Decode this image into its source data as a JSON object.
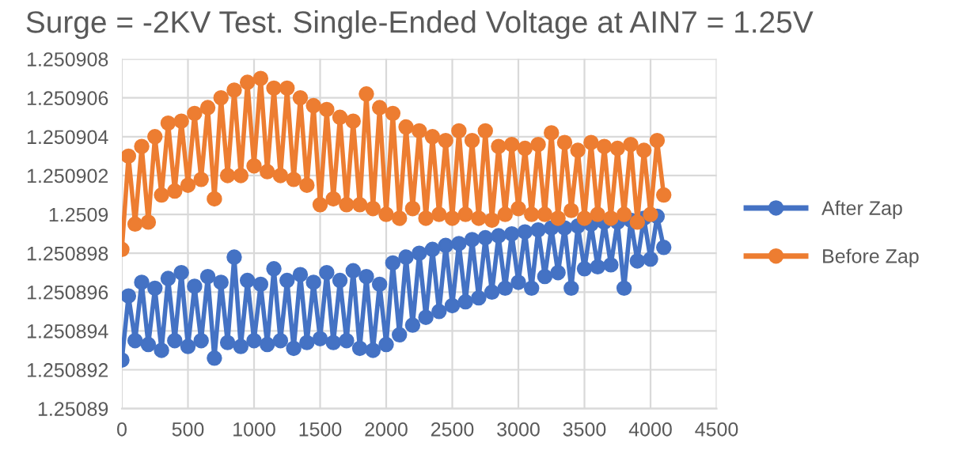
{
  "chart_data": {
    "type": "line",
    "title": "Surge = -2KV Test. Single-Ended Voltage at AIN7 = 1.25V",
    "x": [
      0,
      50,
      100,
      150,
      200,
      250,
      300,
      350,
      400,
      450,
      500,
      550,
      600,
      650,
      700,
      750,
      800,
      850,
      900,
      950,
      1000,
      1050,
      1100,
      1150,
      1200,
      1250,
      1300,
      1350,
      1400,
      1450,
      1500,
      1550,
      1600,
      1650,
      1700,
      1750,
      1800,
      1850,
      1900,
      1950,
      2000,
      2050,
      2100,
      2150,
      2200,
      2250,
      2300,
      2350,
      2400,
      2450,
      2500,
      2550,
      2600,
      2650,
      2700,
      2750,
      2800,
      2850,
      2900,
      2950,
      3000,
      3050,
      3100,
      3150,
      3200,
      3250,
      3300,
      3350,
      3400,
      3450,
      3500,
      3550,
      3600,
      3650,
      3700,
      3750,
      3800,
      3850,
      3900,
      3950,
      4000,
      4050,
      4100
    ],
    "series": [
      {
        "name": "After Zap",
        "color": "#4472c4",
        "values": [
          1.2508925,
          1.2508958,
          1.2508935,
          1.2508965,
          1.2508933,
          1.2508962,
          1.250893,
          1.2508967,
          1.2508935,
          1.250897,
          1.2508932,
          1.2508963,
          1.2508935,
          1.2508968,
          1.2508926,
          1.2508965,
          1.2508934,
          1.2508978,
          1.2508932,
          1.2508966,
          1.2508935,
          1.2508964,
          1.2508933,
          1.2508972,
          1.2508935,
          1.2508966,
          1.2508931,
          1.2508969,
          1.2508934,
          1.2508965,
          1.2508936,
          1.250897,
          1.2508934,
          1.2508966,
          1.2508935,
          1.2508971,
          1.2508931,
          1.2508968,
          1.250893,
          1.2508964,
          1.2508933,
          1.2508975,
          1.2508938,
          1.2508978,
          1.2508943,
          1.250898,
          1.2508947,
          1.2508982,
          1.250895,
          1.2508984,
          1.2508953,
          1.2508985,
          1.2508955,
          1.2508987,
          1.2508957,
          1.2508988,
          1.250896,
          1.2508989,
          1.2508962,
          1.250899,
          1.2508965,
          1.2508991,
          1.2508962,
          1.2508992,
          1.2508968,
          1.2508993,
          1.250897,
          1.2508993,
          1.2508962,
          1.2508994,
          1.2508972,
          1.2508995,
          1.2508973,
          1.2508996,
          1.2508974,
          1.2508996,
          1.2508962,
          1.2508997,
          1.2508976,
          1.2508998,
          1.2508977,
          1.2508999,
          1.2508983
        ]
      },
      {
        "name": "Before Zap",
        "color": "#ed7d31",
        "values": [
          1.2508982,
          1.250903,
          1.2508995,
          1.2509035,
          1.2508996,
          1.250904,
          1.250901,
          1.2509047,
          1.2509012,
          1.2509048,
          1.2509015,
          1.2509052,
          1.2509018,
          1.2509055,
          1.2509008,
          1.250906,
          1.250902,
          1.2509064,
          1.250902,
          1.2509068,
          1.2509025,
          1.250907,
          1.2509022,
          1.2509065,
          1.250902,
          1.2509065,
          1.2509018,
          1.250906,
          1.2509015,
          1.2509056,
          1.2509005,
          1.2509054,
          1.2509008,
          1.250905,
          1.2509005,
          1.2509048,
          1.2509005,
          1.2509062,
          1.2509003,
          1.2509055,
          1.2509,
          1.2509052,
          1.2508998,
          1.2509045,
          1.2509003,
          1.2509043,
          1.2508998,
          1.250904,
          1.2509,
          1.2509038,
          1.2508998,
          1.2509043,
          1.2509,
          1.2509038,
          1.2508998,
          1.2509043,
          1.2508997,
          1.2509035,
          1.2509,
          1.2509036,
          1.2509003,
          1.2509034,
          1.2509,
          1.2509036,
          1.2509,
          1.2509042,
          1.2508998,
          1.2509037,
          1.2509002,
          1.2509033,
          1.2508998,
          1.2509037,
          1.2509,
          1.2509035,
          1.2508998,
          1.2509034,
          1.2509,
          1.2509036,
          1.2508996,
          1.2509033,
          1.2509,
          1.2509038,
          1.250901
        ]
      }
    ],
    "xlim": [
      0,
      4500
    ],
    "xticks": [
      0,
      500,
      1000,
      1500,
      2000,
      2500,
      3000,
      3500,
      4000,
      4500
    ],
    "ylim": [
      1.25089,
      1.250908
    ],
    "yticks": [
      1.25089,
      1.250892,
      1.250894,
      1.250896,
      1.250898,
      1.2509,
      1.250902,
      1.250904,
      1.250906,
      1.250908
    ],
    "grid": true,
    "legend": "right",
    "marker": "circle",
    "line_style": "solid"
  }
}
